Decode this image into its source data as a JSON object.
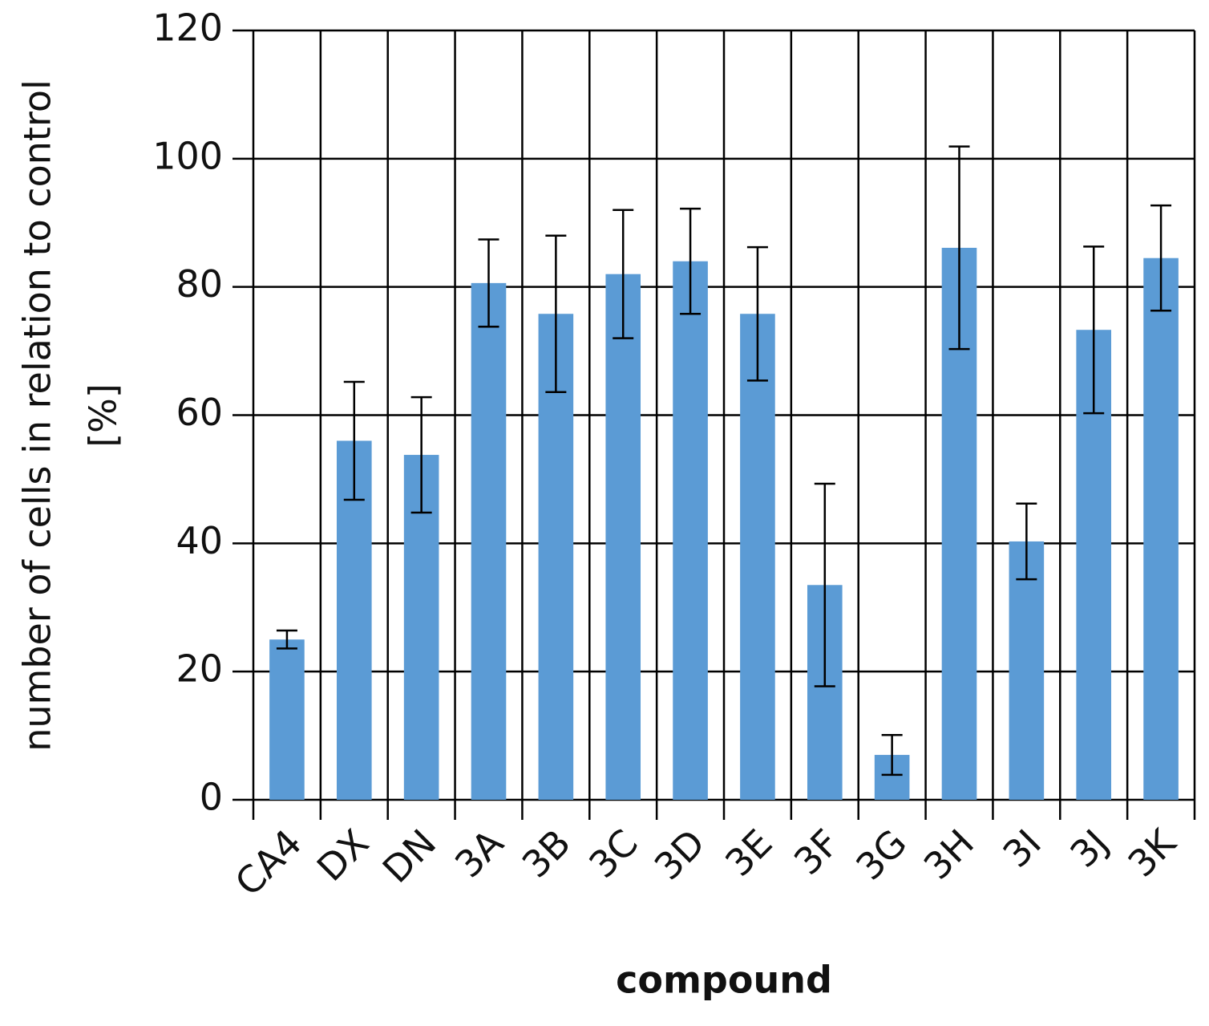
{
  "chart_data": {
    "type": "bar",
    "x_label": "compound",
    "y_label": [
      "number of cells in relation to control",
      "[%]"
    ],
    "categories": [
      "CA4",
      "DX",
      "DN",
      "3A",
      "3B",
      "3C",
      "3D",
      "3E",
      "3F",
      "3G",
      "3H",
      "3I",
      "3J",
      "3K"
    ],
    "values": [
      25,
      56,
      53.8,
      80.6,
      75.8,
      82,
      84,
      75.8,
      33.5,
      7,
      86.1,
      40.3,
      73.3,
      84.5
    ],
    "errors": [
      1.4,
      9.2,
      9,
      6.8,
      12.2,
      10,
      8.2,
      10.4,
      15.8,
      3.1,
      15.8,
      5.9,
      13,
      8.2
    ],
    "color": "#5b9bd5",
    "ylim": [
      0,
      120
    ],
    "yticks": [
      0,
      20,
      40,
      60,
      80,
      100,
      120
    ],
    "grid": true
  }
}
